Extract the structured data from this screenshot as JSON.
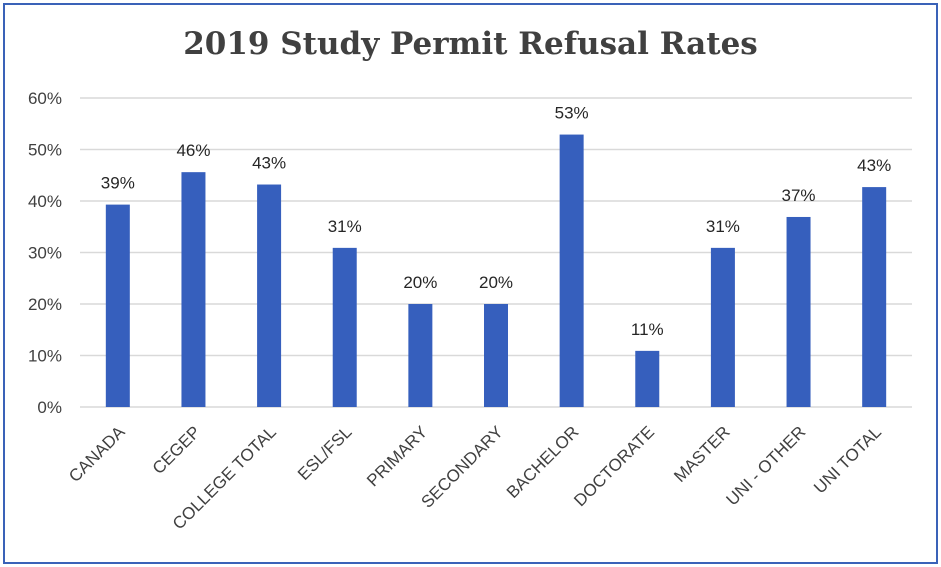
{
  "chart_data": {
    "type": "bar",
    "title": "2019 Study Permit Refusal Rates",
    "xlabel": "",
    "ylabel": "",
    "categories": [
      "CANADA",
      "CEGEP",
      "COLLEGE TOTAL",
      "ESL/FSL",
      "PRIMARY",
      "SECONDARY",
      "BACHELOR",
      "DOCTORATE",
      "MASTER",
      "UNI - OTHER",
      "UNI TOTAL"
    ],
    "values": [
      39.3,
      45.6,
      43.2,
      30.9,
      20.0,
      20.0,
      52.9,
      10.9,
      30.9,
      36.9,
      42.7
    ],
    "data_labels": [
      "39%",
      "46%",
      "43%",
      "31%",
      "20%",
      "20%",
      "53%",
      "11%",
      "31%",
      "37%",
      "43%"
    ],
    "ylim": [
      0,
      60
    ],
    "yticks": [
      0,
      10,
      20,
      30,
      40,
      50,
      60
    ],
    "ytick_labels": [
      "0%",
      "10%",
      "20%",
      "30%",
      "40%",
      "50%",
      "60%"
    ],
    "grid": true,
    "legend": "none",
    "colors": {
      "bar": "#365fbd",
      "grid": "#d9d9d9",
      "border": "#3a62b8",
      "text": "#404040"
    }
  }
}
